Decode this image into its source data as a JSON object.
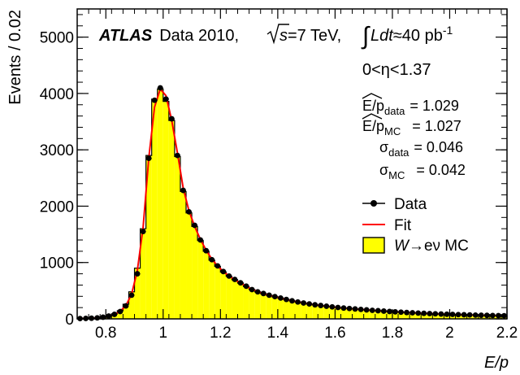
{
  "chart_data": {
    "type": "bar",
    "subtype": "histogram with overlaid data points and fit curve",
    "xlabel": "E/p",
    "ylabel": "Events / 0.02",
    "xlim": [
      0.7,
      2.2
    ],
    "ylim": [
      0,
      5500
    ],
    "bin_width": 0.02,
    "x_ticks": [
      0.8,
      1,
      1.2,
      1.4,
      1.6,
      1.8,
      2,
      2.2
    ],
    "x_tick_labels": [
      "0.8",
      "1",
      "1.2",
      "1.4",
      "1.6",
      "1.8",
      "2",
      "2.2"
    ],
    "y_ticks": [
      0,
      1000,
      2000,
      3000,
      4000,
      5000
    ],
    "y_tick_labels": [
      "0",
      "1000",
      "2000",
      "3000",
      "4000",
      "5000"
    ],
    "grid": false,
    "legend_position": "right",
    "x": [
      0.71,
      0.73,
      0.75,
      0.77,
      0.79,
      0.81,
      0.83,
      0.85,
      0.87,
      0.89,
      0.91,
      0.93,
      0.95,
      0.97,
      0.99,
      1.01,
      1.03,
      1.05,
      1.07,
      1.09,
      1.11,
      1.13,
      1.15,
      1.17,
      1.19,
      1.21,
      1.23,
      1.25,
      1.27,
      1.29,
      1.31,
      1.33,
      1.35,
      1.37,
      1.39,
      1.41,
      1.43,
      1.45,
      1.47,
      1.49,
      1.51,
      1.53,
      1.55,
      1.57,
      1.59,
      1.61,
      1.63,
      1.65,
      1.67,
      1.69,
      1.71,
      1.73,
      1.75,
      1.77,
      1.79,
      1.81,
      1.83,
      1.85,
      1.87,
      1.89,
      1.91,
      1.93,
      1.95,
      1.97,
      1.99,
      2.01,
      2.03,
      2.05,
      2.07,
      2.09,
      2.11,
      2.13,
      2.15,
      2.17,
      2.19
    ],
    "series": [
      {
        "name": "Data",
        "kind": "points",
        "color": "#000000",
        "values": [
          5,
          8,
          12,
          18,
          30,
          50,
          80,
          130,
          230,
          420,
          800,
          1550,
          2850,
          3880,
          4100,
          3900,
          3550,
          2900,
          2280,
          1900,
          1660,
          1400,
          1210,
          1050,
          940,
          840,
          760,
          700,
          640,
          580,
          520,
          480,
          450,
          420,
          395,
          370,
          345,
          320,
          300,
          282,
          265,
          250,
          237,
          225,
          213,
          202,
          192,
          184,
          176,
          168,
          160,
          152,
          145,
          138,
          131,
          125,
          119,
          113,
          108,
          103,
          98,
          94,
          90,
          86,
          82,
          79,
          76,
          73,
          70,
          67,
          64,
          62,
          60,
          58,
          56
        ]
      },
      {
        "name": "Fit",
        "kind": "line",
        "color": "#ff0000",
        "values": [
          4,
          7,
          11,
          17,
          28,
          48,
          80,
          135,
          235,
          440,
          860,
          1620,
          2860,
          3760,
          4080,
          3960,
          3520,
          2940,
          2320,
          1920,
          1640,
          1410,
          1220,
          1060,
          940,
          840,
          760,
          695,
          635,
          580,
          525,
          485,
          450,
          420,
          393,
          368,
          344,
          321,
          301,
          283,
          266,
          251,
          237,
          225,
          213,
          202,
          192,
          183,
          175,
          167,
          159,
          152,
          145,
          138,
          132,
          126,
          120,
          114,
          109,
          104,
          99,
          95,
          91,
          87,
          83,
          79,
          76,
          73,
          70,
          67,
          65,
          62,
          60,
          58,
          56
        ]
      },
      {
        "name": "W→eν MC",
        "kind": "histogram",
        "color": "#ffff00",
        "values": [
          6,
          9,
          13,
          19,
          32,
          55,
          90,
          145,
          260,
          480,
          900,
          1600,
          2900,
          3900,
          4080,
          3860,
          3520,
          2880,
          2260,
          1880,
          1640,
          1390,
          1200,
          1040,
          930,
          830,
          755,
          695,
          635,
          575,
          520,
          478,
          448,
          418,
          392,
          368,
          343,
          320,
          300,
          282,
          264,
          249,
          236,
          224,
          212,
          201,
          191,
          183,
          175,
          167,
          159,
          151,
          144,
          137,
          130,
          124,
          118,
          112,
          107,
          102,
          97,
          93,
          89,
          85,
          81,
          78,
          75,
          72,
          69,
          66,
          63,
          61,
          59,
          57,
          55
        ]
      }
    ]
  },
  "annotations": {
    "atlas_label": "ATLAS",
    "data_label": "Data 2010,",
    "sqrt_s": "s",
    "energy": "=7 TeV,",
    "lumi_L": "L",
    "lumi_dt": "dt",
    "lumi_value": "≈40 pb",
    "lumi_exp": "-1",
    "eta_range": "0<η<1.37",
    "ep_data_label": "E/p",
    "ep_data_sub": "data",
    "ep_data_value": "= 1.029",
    "ep_mc_label": "E/p",
    "ep_mc_sub": "MC",
    "ep_mc_value": "= 1.027",
    "sigma_data_label": "σ",
    "sigma_data_sub": "data",
    "sigma_data_value": "= 0.046",
    "sigma_mc_label": "σ",
    "sigma_mc_sub": "MC",
    "sigma_mc_value": "= 0.042"
  },
  "legend": {
    "data": "Data",
    "fit": "Fit",
    "mc_W": "W",
    "mc_rest": "→eν MC"
  },
  "colors": {
    "mc_fill": "#ffff00",
    "fit_line": "#ff0000",
    "data_marker": "#000000"
  }
}
